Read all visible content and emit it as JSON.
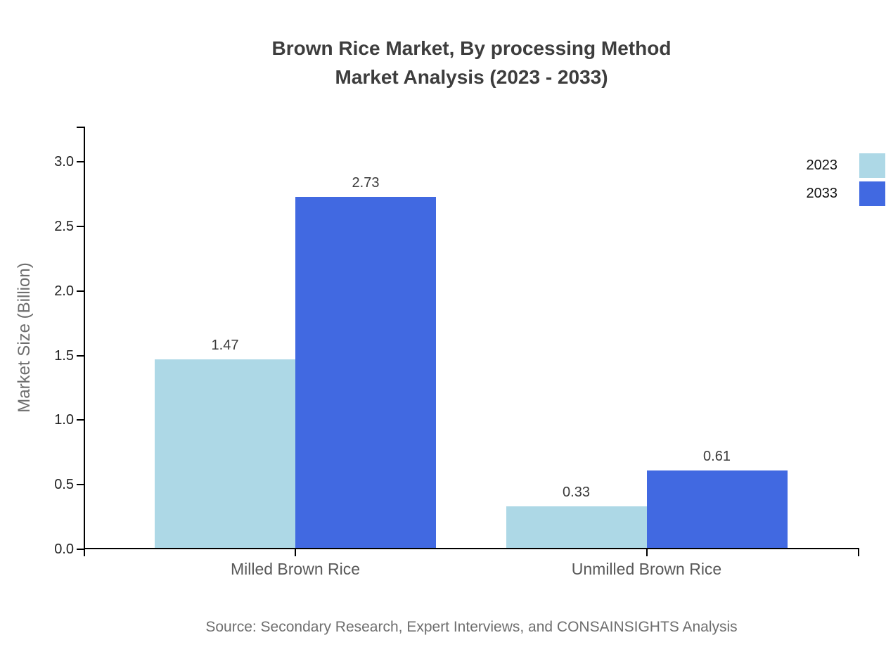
{
  "chart_data": {
    "type": "bar",
    "title": "Brown Rice Market, By processing Method",
    "subtitle": "Market Analysis (2023 - 2033)",
    "ylabel": "Market Size (Billion)",
    "categories": [
      "Milled Brown Rice",
      "Unmilled Brown Rice"
    ],
    "series": [
      {
        "name": "2023",
        "color": "#ADD8E6",
        "values": [
          1.47,
          0.33
        ]
      },
      {
        "name": "2033",
        "color": "#4169E1",
        "values": [
          2.73,
          0.61
        ]
      }
    ],
    "ylim": [
      0.0,
      3.0
    ],
    "yticks": [
      "0.0",
      "0.5",
      "1.0",
      "1.5",
      "2.0",
      "2.5",
      "3.0"
    ],
    "grid": false,
    "legend_position": "top-right",
    "axis_color": "#000000",
    "source": "Source: Secondary Research, Expert Interviews, and CONSAINSIGHTS Analysis"
  }
}
